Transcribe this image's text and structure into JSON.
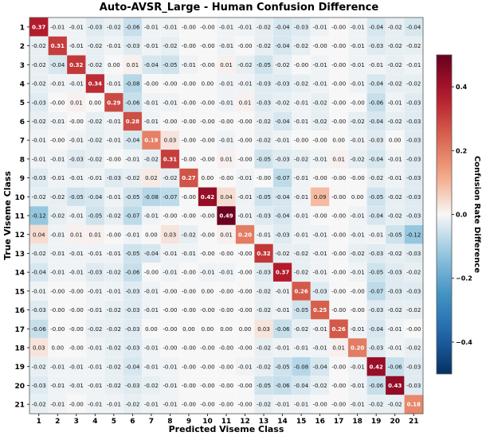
{
  "chart_data": {
    "type": "heatmap",
    "title": "Auto-AVSR_Large - Human Confusion Difference",
    "xlabel": "Predicted Viseme Class",
    "ylabel": "True Viseme Class",
    "colorbar_label": "Confusion Rate Difference",
    "x_categories": [
      "1",
      "2",
      "3",
      "4",
      "5",
      "6",
      "7",
      "8",
      "9",
      "10",
      "11",
      "12",
      "13",
      "14",
      "15",
      "16",
      "17",
      "18",
      "19",
      "20",
      "21"
    ],
    "y_categories": [
      "1",
      "2",
      "3",
      "4",
      "5",
      "6",
      "7",
      "8",
      "9",
      "10",
      "11",
      "12",
      "13",
      "14",
      "15",
      "16",
      "17",
      "18",
      "19",
      "20",
      "21"
    ],
    "vlim": [
      -0.5,
      0.5
    ],
    "colorbar_ticks": [
      -0.4,
      -0.2,
      0.0,
      0.2,
      0.4
    ],
    "colorbar_tick_labels": [
      "−0.4",
      "−0.2",
      "0.0",
      "0.2",
      "0.4"
    ],
    "colormap": "RdBu_r",
    "values": [
      [
        0.37,
        -0.01,
        -0.01,
        -0.03,
        -0.02,
        -0.06,
        -0.01,
        -0.01,
        -0.0,
        -0.0,
        -0.01,
        -0.01,
        -0.02,
        -0.04,
        -0.03,
        -0.01,
        -0.0,
        -0.01,
        -0.04,
        -0.02,
        -0.04
      ],
      [
        -0.02,
        0.31,
        -0.01,
        -0.02,
        -0.01,
        -0.03,
        -0.01,
        -0.02,
        -0.0,
        -0.0,
        -0.01,
        -0.0,
        -0.02,
        -0.04,
        -0.02,
        -0.0,
        -0.0,
        -0.01,
        -0.03,
        -0.02,
        -0.02
      ],
      [
        -0.02,
        -0.04,
        0.32,
        -0.02,
        0.0,
        0.01,
        -0.04,
        -0.05,
        -0.01,
        -0.0,
        0.01,
        -0.02,
        -0.05,
        -0.02,
        -0.0,
        -0.01,
        -0.0,
        -0.01,
        -0.01,
        -0.02,
        -0.01
      ],
      [
        -0.02,
        -0.01,
        -0.01,
        0.34,
        -0.01,
        -0.08,
        -0.0,
        -0.0,
        -0.0,
        0.0,
        -0.01,
        -0.01,
        -0.03,
        -0.03,
        -0.02,
        -0.01,
        -0.0,
        -0.01,
        -0.04,
        -0.02,
        -0.02
      ],
      [
        -0.03,
        -0.0,
        0.01,
        0.0,
        0.29,
        -0.06,
        -0.01,
        -0.01,
        -0.0,
        -0.0,
        -0.01,
        0.01,
        -0.03,
        -0.02,
        -0.01,
        -0.02,
        -0.0,
        -0.0,
        -0.06,
        -0.01,
        -0.03
      ],
      [
        -0.02,
        -0.01,
        -0.0,
        -0.02,
        -0.01,
        0.28,
        -0.01,
        -0.0,
        -0.0,
        -0.0,
        -0.0,
        -0.0,
        -0.02,
        -0.04,
        -0.01,
        -0.02,
        -0.0,
        -0.02,
        -0.04,
        -0.02,
        -0.03
      ],
      [
        -0.01,
        -0.0,
        -0.01,
        -0.02,
        -0.01,
        -0.04,
        0.19,
        0.03,
        -0.0,
        -0.0,
        -0.01,
        -0.0,
        -0.02,
        -0.01,
        -0.0,
        -0.0,
        0.0,
        -0.01,
        -0.03,
        0.0,
        -0.03
      ],
      [
        -0.01,
        -0.01,
        -0.03,
        -0.02,
        -0.0,
        -0.01,
        -0.02,
        0.31,
        -0.0,
        -0.0,
        0.01,
        -0.0,
        -0.05,
        -0.03,
        -0.02,
        -0.01,
        0.01,
        -0.02,
        -0.04,
        -0.01,
        -0.03
      ],
      [
        -0.03,
        -0.01,
        -0.01,
        -0.01,
        -0.03,
        -0.02,
        0.02,
        -0.02,
        0.27,
        0.0,
        -0.0,
        -0.01,
        -0.0,
        -0.07,
        -0.01,
        -0.0,
        -0.0,
        -0.0,
        -0.02,
        -0.01,
        -0.03
      ],
      [
        -0.02,
        -0.02,
        -0.05,
        -0.04,
        -0.01,
        -0.05,
        -0.08,
        -0.07,
        -0.0,
        0.42,
        0.04,
        -0.01,
        -0.05,
        -0.04,
        -0.01,
        0.09,
        -0.0,
        0.0,
        -0.05,
        -0.02,
        -0.03
      ],
      [
        -0.12,
        -0.02,
        -0.01,
        -0.05,
        -0.02,
        -0.07,
        -0.01,
        -0.0,
        -0.0,
        -0.0,
        0.49,
        -0.01,
        -0.03,
        -0.04,
        -0.01,
        -0.0,
        -0.0,
        -0.01,
        -0.04,
        -0.02,
        -0.03
      ],
      [
        0.04,
        -0.01,
        0.01,
        0.01,
        -0.0,
        -0.01,
        0.0,
        0.03,
        -0.02,
        -0.0,
        0.01,
        0.2,
        -0.01,
        -0.03,
        -0.01,
        -0.01,
        -0.0,
        -0.01,
        -0.01,
        -0.05,
        -0.12
      ],
      [
        -0.02,
        -0.01,
        -0.01,
        -0.01,
        -0.01,
        -0.05,
        -0.04,
        -0.01,
        -0.01,
        -0.0,
        -0.0,
        -0.0,
        0.32,
        -0.02,
        -0.02,
        -0.01,
        -0.0,
        -0.02,
        -0.03,
        -0.02,
        -0.03
      ],
      [
        -0.04,
        -0.01,
        -0.01,
        -0.03,
        -0.02,
        -0.06,
        -0.0,
        -0.01,
        -0.0,
        -0.01,
        -0.01,
        -0.0,
        -0.03,
        0.37,
        -0.02,
        -0.01,
        -0.0,
        -0.01,
        -0.05,
        -0.03,
        -0.02
      ],
      [
        -0.01,
        -0.0,
        -0.0,
        -0.01,
        -0.01,
        -0.03,
        -0.01,
        -0.0,
        -0.0,
        0.0,
        -0.0,
        -0.0,
        -0.02,
        -0.01,
        0.26,
        -0.03,
        -0.0,
        -0.0,
        -0.07,
        -0.03,
        -0.03
      ],
      [
        -0.03,
        -0.0,
        -0.0,
        -0.01,
        -0.02,
        -0.03,
        -0.01,
        -0.0,
        -0.0,
        -0.0,
        -0.0,
        -0.0,
        -0.02,
        -0.01,
        -0.05,
        0.25,
        -0.0,
        -0.0,
        -0.03,
        -0.02,
        -0.02
      ],
      [
        -0.06,
        -0.0,
        -0.0,
        -0.02,
        -0.02,
        -0.03,
        0.0,
        -0.0,
        0.0,
        0.0,
        0.0,
        0.0,
        0.03,
        -0.06,
        -0.02,
        -0.01,
        0.26,
        -0.01,
        -0.04,
        -0.01,
        -0.0
      ],
      [
        0.03,
        0.0,
        -0.0,
        -0.01,
        -0.02,
        -0.03,
        -0.01,
        -0.0,
        -0.0,
        -0.0,
        -0.0,
        -0.0,
        -0.02,
        -0.01,
        -0.01,
        -0.01,
        0.01,
        0.2,
        -0.03,
        -0.01,
        -0.02
      ],
      [
        -0.02,
        -0.01,
        -0.01,
        -0.01,
        -0.02,
        -0.04,
        -0.01,
        -0.01,
        -0.0,
        -0.0,
        -0.0,
        -0.01,
        -0.02,
        -0.05,
        -0.08,
        -0.04,
        -0.0,
        -0.01,
        0.42,
        -0.06,
        -0.03
      ],
      [
        -0.03,
        -0.01,
        -0.01,
        -0.01,
        -0.02,
        -0.03,
        -0.02,
        -0.01,
        -0.0,
        -0.0,
        -0.0,
        -0.0,
        -0.05,
        -0.06,
        -0.04,
        -0.02,
        -0.0,
        -0.01,
        -0.06,
        0.43,
        -0.03
      ],
      [
        -0.02,
        -0.01,
        -0.0,
        -0.01,
        -0.01,
        -0.02,
        -0.01,
        -0.01,
        -0.0,
        -0.0,
        -0.0,
        -0.0,
        -0.02,
        -0.01,
        -0.01,
        -0.0,
        -0.0,
        -0.01,
        -0.02,
        -0.02,
        0.18
      ]
    ]
  }
}
